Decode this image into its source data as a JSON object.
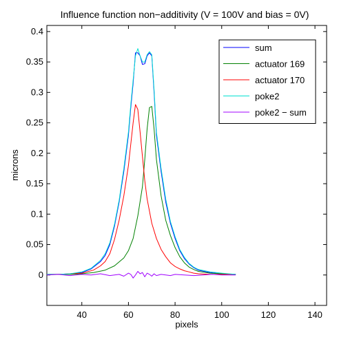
{
  "colors": {
    "sum": "#0000ff",
    "actuator169": "#008000",
    "actuator170": "#ff0000",
    "poke2": "#00e0d0",
    "poke2_minus_sum": "#a000ff",
    "axes": "#000000",
    "background": "#ffffff"
  },
  "chart_data": {
    "type": "line",
    "title": "Influence function non−additivity (V = 100V and bias = 0V)",
    "xlabel": "pixels",
    "ylabel": "microns",
    "xlim": [
      25,
      145
    ],
    "ylim": [
      -0.05,
      0.41
    ],
    "xticks": [
      40,
      60,
      80,
      100,
      120,
      140
    ],
    "xtick_labels": [
      "40",
      "60",
      "80",
      "100",
      "120",
      "140"
    ],
    "yticks": [
      0,
      0.05,
      0.1,
      0.15,
      0.2,
      0.25,
      0.3,
      0.35,
      0.4
    ],
    "ytick_labels": [
      "0",
      "0.05",
      "0.1",
      "0.15",
      "0.2",
      "0.25",
      "0.3",
      "0.35",
      "0.4"
    ],
    "grid": false,
    "legend_position": "top-right",
    "series": [
      {
        "name": "sum",
        "color_key": "sum",
        "x": [
          25,
          30,
          35,
          40,
          44,
          48,
          50,
          52,
          54,
          56,
          58,
          60,
          61,
          62,
          63,
          64,
          65,
          66,
          67,
          68,
          69,
          70,
          71,
          72,
          74,
          76,
          78,
          80,
          82,
          84,
          86,
          88,
          90,
          95,
          100,
          106
        ],
        "y": [
          0.001,
          0.001,
          0.002,
          0.004,
          0.01,
          0.022,
          0.032,
          0.05,
          0.08,
          0.12,
          0.17,
          0.23,
          0.275,
          0.315,
          0.365,
          0.365,
          0.36,
          0.346,
          0.347,
          0.36,
          0.365,
          0.36,
          0.3,
          0.23,
          0.17,
          0.12,
          0.085,
          0.06,
          0.04,
          0.027,
          0.018,
          0.012,
          0.008,
          0.004,
          0.002,
          0.001
        ]
      },
      {
        "name": "actuator 169",
        "color_key": "actuator169",
        "x": [
          25,
          30,
          35,
          40,
          45,
          50,
          54,
          58,
          60,
          62,
          64,
          66,
          67,
          68,
          69,
          70,
          71,
          72,
          74,
          76,
          78,
          80,
          82,
          84,
          86,
          88,
          90,
          95,
          100,
          106
        ],
        "y": [
          0.001,
          0.001,
          0.001,
          0.002,
          0.004,
          0.008,
          0.015,
          0.028,
          0.04,
          0.06,
          0.097,
          0.145,
          0.19,
          0.24,
          0.275,
          0.277,
          0.24,
          0.19,
          0.13,
          0.09,
          0.065,
          0.045,
          0.03,
          0.02,
          0.013,
          0.009,
          0.006,
          0.003,
          0.002,
          0.001
        ]
      },
      {
        "name": "actuator 170",
        "color_key": "actuator170",
        "x": [
          25,
          30,
          35,
          40,
          45,
          48,
          50,
          52,
          54,
          56,
          58,
          60,
          61,
          62,
          63,
          64,
          65,
          66,
          67,
          68,
          70,
          72,
          74,
          76,
          78,
          80,
          82,
          84,
          86,
          88,
          90,
          95,
          100,
          106
        ],
        "y": [
          0.001,
          0.001,
          0.002,
          0.003,
          0.008,
          0.015,
          0.022,
          0.035,
          0.058,
          0.09,
          0.13,
          0.18,
          0.215,
          0.25,
          0.28,
          0.272,
          0.235,
          0.195,
          0.155,
          0.125,
          0.085,
          0.06,
          0.042,
          0.03,
          0.02,
          0.014,
          0.01,
          0.007,
          0.005,
          0.003,
          0.002,
          0.001,
          0.001,
          0.001
        ]
      },
      {
        "name": "poke2",
        "color_key": "poke2",
        "x": [
          25,
          30,
          35,
          40,
          44,
          48,
          50,
          52,
          54,
          56,
          58,
          60,
          61,
          62,
          63,
          64,
          65,
          66,
          67,
          68,
          69,
          70,
          71,
          72,
          74,
          76,
          78,
          80,
          82,
          84,
          86,
          88,
          90,
          95,
          100,
          106
        ],
        "y": [
          0.001,
          0.001,
          0.002,
          0.005,
          0.011,
          0.024,
          0.035,
          0.053,
          0.083,
          0.123,
          0.175,
          0.235,
          0.28,
          0.32,
          0.36,
          0.372,
          0.36,
          0.35,
          0.35,
          0.362,
          0.367,
          0.362,
          0.305,
          0.235,
          0.175,
          0.125,
          0.088,
          0.063,
          0.042,
          0.029,
          0.019,
          0.013,
          0.009,
          0.005,
          0.003,
          0.001
        ]
      },
      {
        "name": "poke2 − sum",
        "color_key": "poke2_minus_sum",
        "x": [
          25,
          30,
          35,
          40,
          44,
          48,
          52,
          56,
          58,
          60,
          61,
          62,
          63,
          64,
          65,
          66,
          67,
          68,
          69,
          70,
          71,
          72,
          74,
          76,
          78,
          80,
          84,
          88,
          92,
          96,
          100,
          106
        ],
        "y": [
          0.0,
          0.001,
          -0.001,
          0.001,
          0.0,
          0.002,
          -0.001,
          0.001,
          -0.002,
          0.003,
          0.001,
          -0.005,
          0.0,
          0.006,
          0.002,
          0.004,
          -0.003,
          0.003,
          0.001,
          -0.002,
          0.002,
          -0.001,
          0.001,
          0.0,
          -0.001,
          0.001,
          0.0,
          -0.001,
          0.0,
          0.001,
          0.0,
          0.0
        ]
      }
    ]
  }
}
